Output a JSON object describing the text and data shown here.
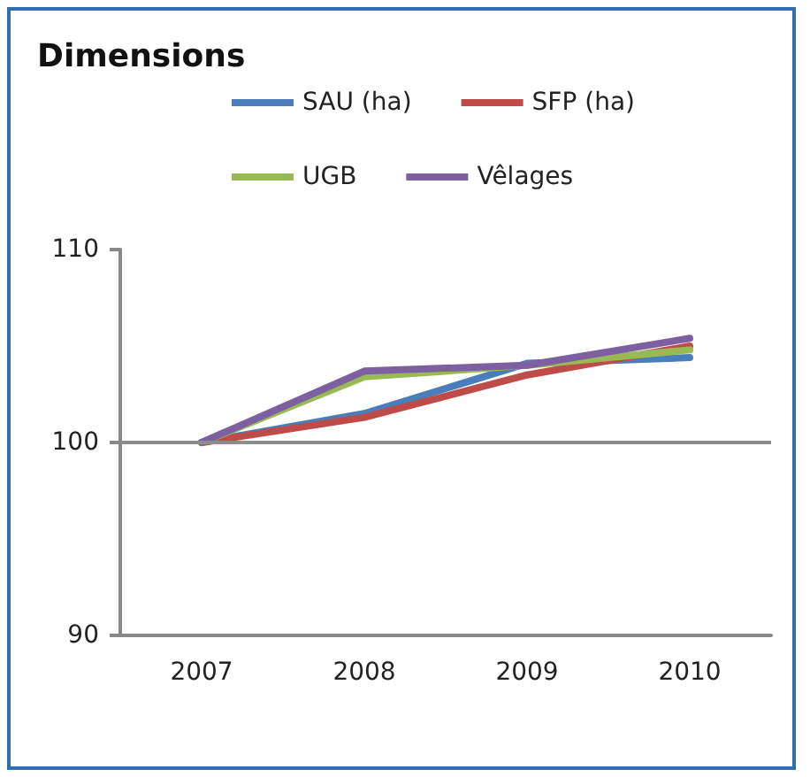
{
  "chart_data": {
    "type": "line",
    "title": "Dimensions",
    "categories": [
      "2007",
      "2008",
      "2009",
      "2010"
    ],
    "series": [
      {
        "name": "SAU (ha)",
        "color": "#4a7ebb",
        "values": [
          100,
          101.5,
          104.1,
          104.4
        ]
      },
      {
        "name": "SFP (ha)",
        "color": "#be4b48",
        "values": [
          100,
          101.3,
          103.5,
          105.0
        ]
      },
      {
        "name": "UGB",
        "color": "#98b954",
        "values": [
          100,
          103.4,
          104.0,
          104.8
        ]
      },
      {
        "name": "Vêlages",
        "color": "#7d60a0",
        "values": [
          100,
          103.7,
          104.0,
          105.4
        ]
      }
    ],
    "ylim": [
      90,
      110
    ],
    "yticks": [
      90,
      100,
      110
    ],
    "grid": false,
    "legend": "top",
    "marker": "none",
    "line_style": "solid",
    "ref_lines": [
      {
        "axis": "y",
        "value": 100,
        "label": null,
        "color": "#8c8c8c"
      }
    ]
  }
}
